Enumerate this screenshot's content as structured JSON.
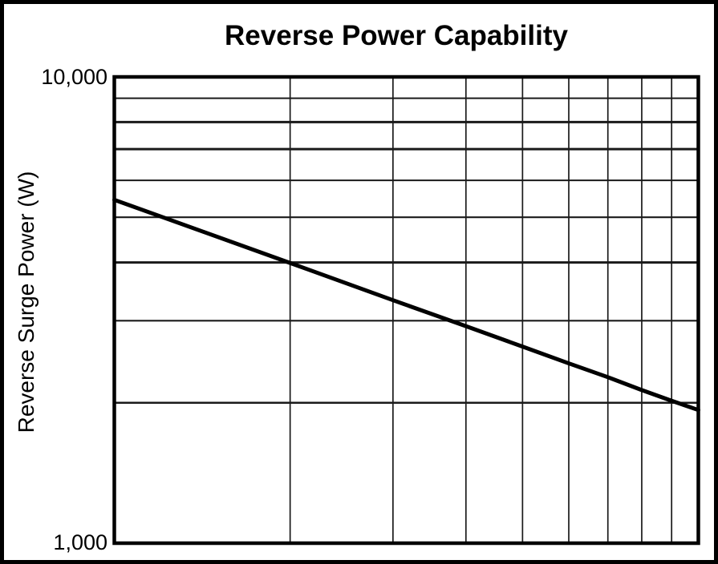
{
  "colors": {
    "ink": "#000000",
    "background": "#ffffff",
    "gridline": "#1a1a1a"
  },
  "chart_data": {
    "type": "line",
    "title": "Reverse Power Capability",
    "ylabel": "Reverse Surge Power (W)",
    "xlabel": "",
    "x_scale": "log",
    "y_scale": "log",
    "xlim": [
      1,
      10
    ],
    "ylim": [
      1000,
      10000
    ],
    "y_tick_labels": [
      "10,000",
      "1,000"
    ],
    "x_tick_labels": [],
    "x_axis_labels_visible": false,
    "grid": {
      "horizontal_lines_w": [
        2000,
        3000,
        4000,
        5000,
        6000,
        7000,
        8000,
        9000
      ],
      "vertical_lines_x": [
        2,
        3,
        4,
        5,
        6,
        7,
        8,
        9
      ]
    },
    "legend": null,
    "series": [
      {
        "name": "Reverse Surge Power",
        "color": "#000000",
        "shape": "straight line on log-log axes",
        "x": [
          1,
          2,
          3,
          4,
          5,
          6,
          7,
          8,
          9,
          10
        ],
        "y": [
          5450,
          3990,
          3320,
          2920,
          2640,
          2430,
          2270,
          2130,
          2020,
          1930
        ]
      }
    ]
  }
}
